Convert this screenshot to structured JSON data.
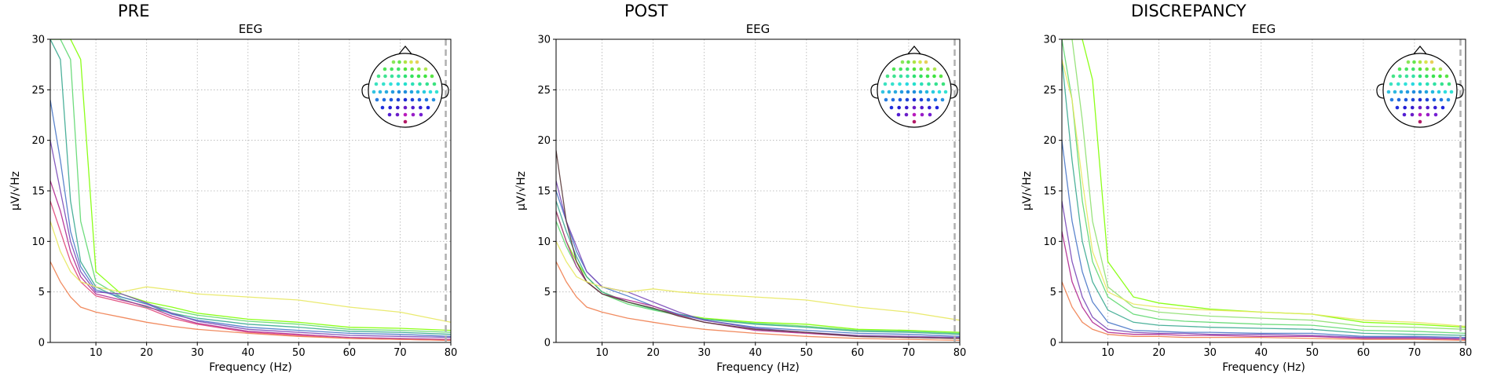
{
  "chart_data": [
    {
      "type": "line",
      "title": "PRE",
      "subtitle": "EEG",
      "xlabel": "Frequency (Hz)",
      "ylabel": "µV/√Hz",
      "xlim": [
        1,
        80
      ],
      "ylim": [
        0,
        30
      ],
      "xticks": [
        "10",
        "20",
        "30",
        "40",
        "50",
        "60",
        "70",
        "80"
      ],
      "yticks": [
        "0",
        "5",
        "10",
        "15",
        "20",
        "25",
        "30"
      ],
      "grid": true,
      "legend": "sensor-location inset (top-right)",
      "marker_line_x": 79,
      "series": [
        {
          "color": "#7fff00",
          "x": [
            1,
            3,
            5,
            7,
            10,
            15,
            20,
            25,
            30,
            40,
            50,
            60,
            70,
            80
          ],
          "values": [
            30,
            30,
            30,
            28,
            7.0,
            4.8,
            4.0,
            3.5,
            2.9,
            2.3,
            2.0,
            1.5,
            1.4,
            1.2
          ]
        },
        {
          "color": "#5fd870",
          "x": [
            1,
            3,
            5,
            7,
            10,
            15,
            20,
            25,
            30,
            40,
            50,
            60,
            70,
            80
          ],
          "values": [
            30,
            30,
            28,
            12,
            6.0,
            4.5,
            3.8,
            3.2,
            2.7,
            2.1,
            1.8,
            1.3,
            1.2,
            1.0
          ]
        },
        {
          "color": "#3aa890",
          "x": [
            1,
            3,
            5,
            7,
            10,
            15,
            20,
            25,
            30,
            40,
            50,
            60,
            70,
            80
          ],
          "values": [
            30,
            28,
            14,
            8,
            5.5,
            4.3,
            3.5,
            2.9,
            2.4,
            1.8,
            1.5,
            1.1,
            1.0,
            0.8
          ]
        },
        {
          "color": "#4a78c8",
          "x": [
            1,
            3,
            5,
            7,
            10,
            15,
            20,
            25,
            30,
            40,
            50,
            60,
            70,
            80
          ],
          "values": [
            24,
            18,
            11,
            7.5,
            5.2,
            4.5,
            3.8,
            2.8,
            2.2,
            1.5,
            1.2,
            0.9,
            0.8,
            0.6
          ]
        },
        {
          "color": "#7a4ab8",
          "x": [
            1,
            3,
            5,
            7,
            10,
            15,
            20,
            25,
            30,
            40,
            50,
            60,
            70,
            80
          ],
          "values": [
            20,
            15,
            10,
            7,
            5.0,
            4.8,
            3.9,
            2.9,
            2.1,
            1.3,
            1.0,
            0.7,
            0.6,
            0.5
          ]
        },
        {
          "color": "#b02890",
          "x": [
            1,
            3,
            5,
            7,
            10,
            15,
            20,
            25,
            30,
            40,
            50,
            60,
            70,
            80
          ],
          "values": [
            16,
            13,
            9,
            6.5,
            4.8,
            4.2,
            3.6,
            2.6,
            1.9,
            1.1,
            0.8,
            0.5,
            0.4,
            0.3
          ]
        },
        {
          "color": "#e0487a",
          "x": [
            1,
            3,
            5,
            7,
            10,
            15,
            20,
            25,
            30,
            40,
            50,
            60,
            70,
            80
          ],
          "values": [
            14,
            11,
            8,
            6,
            4.6,
            4.0,
            3.4,
            2.4,
            1.8,
            1.0,
            0.7,
            0.4,
            0.3,
            0.2
          ]
        },
        {
          "color": "#f08050",
          "x": [
            1,
            3,
            5,
            7,
            10,
            15,
            20,
            25,
            30,
            40,
            50,
            60,
            70,
            80
          ],
          "values": [
            8,
            6,
            4.5,
            3.5,
            3.0,
            2.5,
            2.0,
            1.6,
            1.3,
            0.9,
            0.6,
            0.4,
            0.3,
            0.2
          ]
        },
        {
          "color": "#e8e860",
          "x": [
            1,
            3,
            5,
            7,
            10,
            15,
            20,
            25,
            30,
            40,
            50,
            60,
            70,
            80
          ],
          "values": [
            12,
            9,
            7,
            6,
            5.5,
            5.0,
            5.5,
            5.2,
            4.8,
            4.5,
            4.2,
            3.5,
            3.0,
            2.0
          ]
        }
      ]
    },
    {
      "type": "line",
      "title": "POST",
      "subtitle": "EEG",
      "xlabel": "Frequency (Hz)",
      "ylabel": "µV/√Hz",
      "xlim": [
        1,
        80
      ],
      "ylim": [
        0,
        30
      ],
      "xticks": [
        "10",
        "20",
        "30",
        "40",
        "50",
        "60",
        "70",
        "80"
      ],
      "yticks": [
        "0",
        "5",
        "10",
        "15",
        "20",
        "25",
        "30"
      ],
      "grid": true,
      "legend": "sensor-location inset (top-right)",
      "marker_line_x": 79,
      "series": [
        {
          "color": "#7fff00",
          "x": [
            1,
            3,
            5,
            7,
            10,
            15,
            20,
            25,
            30,
            40,
            50,
            60,
            70,
            80
          ],
          "values": [
            13,
            10,
            8,
            6.5,
            5.0,
            4.0,
            3.3,
            2.8,
            2.4,
            2.0,
            1.8,
            1.3,
            1.2,
            1.0
          ]
        },
        {
          "color": "#5fd870",
          "x": [
            1,
            3,
            5,
            7,
            10,
            15,
            20,
            25,
            30,
            40,
            50,
            60,
            70,
            80
          ],
          "values": [
            12,
            9.5,
            7.5,
            6,
            4.8,
            3.8,
            3.2,
            2.7,
            2.3,
            1.9,
            1.6,
            1.2,
            1.1,
            0.9
          ]
        },
        {
          "color": "#3aa890",
          "x": [
            1,
            3,
            5,
            7,
            10,
            15,
            20,
            25,
            30,
            40,
            50,
            60,
            70,
            80
          ],
          "values": [
            14,
            11,
            8.5,
            6.5,
            5.0,
            4.0,
            3.3,
            2.8,
            2.3,
            1.8,
            1.5,
            1.1,
            1.0,
            0.8
          ]
        },
        {
          "color": "#4a78c8",
          "x": [
            1,
            3,
            5,
            7,
            10,
            15,
            20,
            25,
            30,
            40,
            50,
            60,
            70,
            80
          ],
          "values": [
            15,
            12,
            9,
            7,
            5.5,
            4.6,
            3.6,
            2.8,
            2.2,
            1.5,
            1.2,
            0.9,
            0.8,
            0.6
          ]
        },
        {
          "color": "#7a4ab8",
          "x": [
            1,
            3,
            5,
            7,
            10,
            15,
            20,
            25,
            30,
            40,
            50,
            60,
            70,
            80
          ],
          "values": [
            16,
            12,
            9.5,
            7,
            5.5,
            5.0,
            4.0,
            3.0,
            2.2,
            1.4,
            1.0,
            0.7,
            0.6,
            0.5
          ]
        },
        {
          "color": "#b02890",
          "x": [
            1,
            3,
            5,
            7,
            10,
            15,
            20,
            25,
            30,
            40,
            50,
            60,
            70,
            80
          ],
          "values": [
            13,
            10,
            7.5,
            6,
            4.8,
            4.2,
            3.6,
            2.7,
            2.0,
            1.2,
            0.9,
            0.6,
            0.5,
            0.4
          ]
        },
        {
          "color": "#5a3a3a",
          "x": [
            1,
            3,
            5,
            7,
            10,
            15,
            20,
            25,
            30,
            40,
            50,
            60,
            70,
            80
          ],
          "values": [
            19,
            12,
            8,
            6,
            4.8,
            4.0,
            3.4,
            2.6,
            2.0,
            1.3,
            1.0,
            0.6,
            0.5,
            0.4
          ]
        },
        {
          "color": "#f08050",
          "x": [
            1,
            3,
            5,
            7,
            10,
            15,
            20,
            25,
            30,
            40,
            50,
            60,
            70,
            80
          ],
          "values": [
            8,
            6,
            4.5,
            3.5,
            3.0,
            2.4,
            2.0,
            1.6,
            1.3,
            0.9,
            0.6,
            0.4,
            0.3,
            0.2
          ]
        },
        {
          "color": "#e8e860",
          "x": [
            1,
            3,
            5,
            7,
            10,
            15,
            20,
            25,
            30,
            40,
            50,
            60,
            70,
            80
          ],
          "values": [
            10,
            8,
            6.5,
            6,
            5.5,
            5.0,
            5.3,
            5.0,
            4.8,
            4.5,
            4.2,
            3.5,
            3.0,
            2.2
          ]
        }
      ]
    },
    {
      "type": "line",
      "title": "DISCREPANCY",
      "subtitle": "EEG",
      "xlabel": "Frequency (Hz)",
      "ylabel": "µV/√Hz",
      "xlim": [
        1,
        80
      ],
      "ylim": [
        0,
        30
      ],
      "xticks": [
        "10",
        "20",
        "30",
        "40",
        "50",
        "60",
        "70",
        "80"
      ],
      "yticks": [
        "0",
        "5",
        "10",
        "15",
        "20",
        "25",
        "30"
      ],
      "grid": true,
      "legend": "sensor-location inset (top-right)",
      "marker_line_x": 79,
      "series": [
        {
          "color": "#7fff00",
          "x": [
            1,
            3,
            5,
            7,
            10,
            15,
            20,
            25,
            30,
            40,
            50,
            60,
            70,
            80
          ],
          "values": [
            30,
            30,
            30,
            26,
            8.0,
            4.5,
            3.9,
            3.6,
            3.3,
            3.0,
            2.8,
            2.0,
            1.8,
            1.5
          ]
        },
        {
          "color": "#8ee070",
          "x": [
            1,
            3,
            5,
            7,
            10,
            15,
            20,
            25,
            30,
            40,
            50,
            60,
            70,
            80
          ],
          "values": [
            30,
            30,
            22,
            12,
            5.5,
            3.5,
            3.0,
            2.8,
            2.6,
            2.4,
            2.2,
            1.6,
            1.5,
            1.3
          ]
        },
        {
          "color": "#5fd870",
          "x": [
            1,
            3,
            5,
            7,
            10,
            15,
            20,
            25,
            30,
            40,
            50,
            60,
            70,
            80
          ],
          "values": [
            30,
            24,
            14,
            8,
            4.5,
            2.8,
            2.3,
            2.1,
            2.0,
            1.8,
            1.7,
            1.2,
            1.1,
            0.9
          ]
        },
        {
          "color": "#3aa890",
          "x": [
            1,
            3,
            5,
            7,
            10,
            15,
            20,
            25,
            30,
            40,
            50,
            60,
            70,
            80
          ],
          "values": [
            28,
            18,
            10,
            6,
            3.2,
            2.0,
            1.7,
            1.6,
            1.5,
            1.4,
            1.3,
            0.9,
            0.8,
            0.7
          ]
        },
        {
          "color": "#4a78c8",
          "x": [
            1,
            3,
            5,
            7,
            10,
            15,
            20,
            25,
            30,
            40,
            50,
            60,
            70,
            80
          ],
          "values": [
            20,
            12,
            7,
            4,
            2.0,
            1.2,
            1.1,
            1.0,
            1.0,
            0.9,
            0.9,
            0.6,
            0.6,
            0.5
          ]
        },
        {
          "color": "#7a4ab8",
          "x": [
            1,
            3,
            5,
            7,
            10,
            15,
            20,
            25,
            30,
            40,
            50,
            60,
            70,
            80
          ],
          "values": [
            14,
            8,
            4.5,
            2.5,
            1.3,
            1.0,
            0.9,
            0.9,
            0.8,
            0.8,
            0.7,
            0.5,
            0.5,
            0.4
          ]
        },
        {
          "color": "#b02890",
          "x": [
            1,
            3,
            5,
            7,
            10,
            15,
            20,
            25,
            30,
            40,
            50,
            60,
            70,
            80
          ],
          "values": [
            11,
            6,
            3.5,
            2,
            1.0,
            0.8,
            0.8,
            0.7,
            0.7,
            0.6,
            0.6,
            0.4,
            0.4,
            0.3
          ]
        },
        {
          "color": "#f08050",
          "x": [
            1,
            3,
            5,
            7,
            10,
            15,
            20,
            25,
            30,
            40,
            50,
            60,
            70,
            80
          ],
          "values": [
            6,
            3.5,
            2,
            1.3,
            0.8,
            0.6,
            0.6,
            0.5,
            0.5,
            0.5,
            0.4,
            0.3,
            0.3,
            0.2
          ]
        },
        {
          "color": "#e8e860",
          "x": [
            1,
            3,
            5,
            7,
            10,
            15,
            20,
            25,
            30,
            40,
            50,
            60,
            70,
            80
          ],
          "values": [
            28,
            24,
            16,
            9,
            5.0,
            3.8,
            3.5,
            3.3,
            3.2,
            3.0,
            2.8,
            2.2,
            2.0,
            1.6
          ]
        }
      ]
    }
  ],
  "sensor_inset": {
    "colors": [
      "#7fff00",
      "#5fd870",
      "#3aa890",
      "#4a78c8",
      "#7a4ab8",
      "#b02890",
      "#e0487a",
      "#f08050",
      "#e8e860",
      "#1a6a5a",
      "#2a3a8a",
      "#60a0f0",
      "#c080e0",
      "#ffa060",
      "#d0c040",
      "#10a060"
    ]
  }
}
